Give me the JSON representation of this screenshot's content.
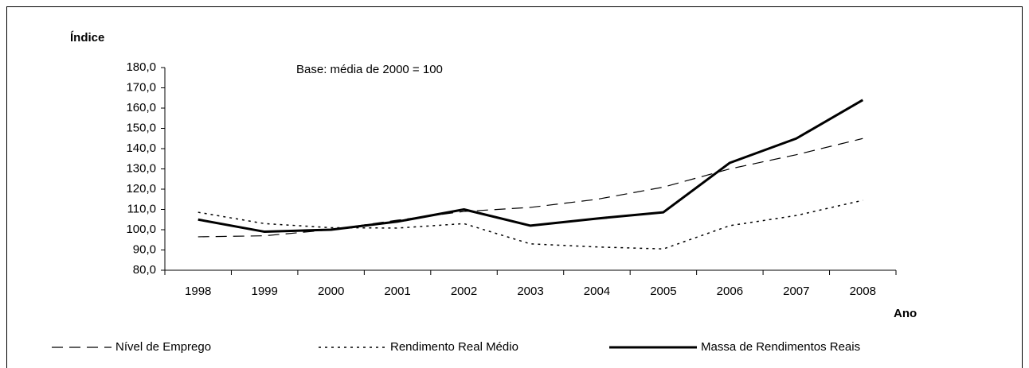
{
  "chart_data": {
    "type": "line",
    "y_label": "Índice",
    "x_label": "Ano",
    "annotation": "Base: média de 2000 = 100",
    "categories": [
      "1998",
      "1999",
      "2000",
      "2001",
      "2002",
      "2003",
      "2004",
      "2005",
      "2006",
      "2007",
      "2008"
    ],
    "series": [
      {
        "name": "Nível de Emprego",
        "color": "#000000",
        "style": "dashed",
        "values": [
          96.5,
          97,
          100,
          104.7,
          109,
          111,
          115,
          121,
          130,
          137,
          145
        ]
      },
      {
        "name": "Rendimento Real Médio",
        "color": "#000000",
        "style": "dotted",
        "values": [
          108.6,
          103,
          101,
          100.8,
          103,
          93,
          91.5,
          90.5,
          102,
          107,
          114.5
        ]
      },
      {
        "name": "Massa de Rendimentos Reais",
        "color": "#000000",
        "style": "solid",
        "values": [
          105,
          99,
          100,
          104,
          110,
          102,
          105.5,
          108.6,
          133,
          145,
          164
        ]
      }
    ],
    "ylim": [
      80,
      180
    ],
    "yticks": [
      {
        "value": 80,
        "label": "80,0"
      },
      {
        "value": 90,
        "label": "90,0"
      },
      {
        "value": 100,
        "label": "100,0"
      },
      {
        "value": 110,
        "label": "110,0"
      },
      {
        "value": 120,
        "label": "120,0"
      },
      {
        "value": 130,
        "label": "130,0"
      },
      {
        "value": 140,
        "label": "140,0"
      },
      {
        "value": 150,
        "label": "150,0"
      },
      {
        "value": 160,
        "label": "160,0"
      },
      {
        "value": 170,
        "label": "170,0"
      },
      {
        "value": 180,
        "label": "180,0"
      }
    ],
    "legend": "bottom",
    "grid": false
  }
}
